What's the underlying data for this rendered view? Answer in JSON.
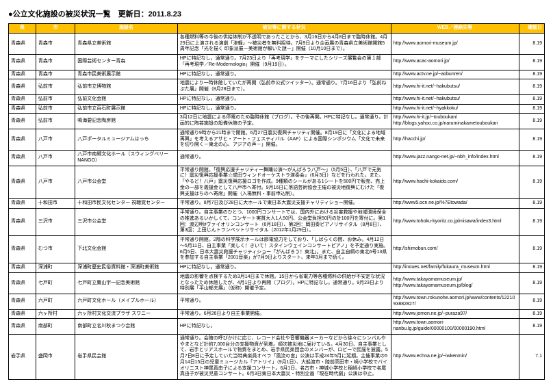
{
  "doc": {
    "title": "●公立文化施設の被災状況一覧　更新日：2011.8.23"
  },
  "columns": {
    "pref": "県",
    "city": "市",
    "facility": "施設名",
    "status": "被災等に関する状況",
    "url": "WEB／連絡先等",
    "date": "確認日"
  },
  "rows": [
    {
      "pref": "青森県",
      "city": "青森市",
      "facility": "青森県立美術館",
      "status": "各種燃料等の今後の供給体制が不透明であったことから、3月16日から4月8日まで臨時休館。4月29日に上演される演劇「津軽」～被災者を無料招待。7月9日より企画展の青森県立美術館開館5周年記念「光を描く 印象派展－美術館が解いた謎－」開催（10月10日まで）。",
      "url": "http://www.aomori-museum.jp/",
      "date": "8.19"
    },
    {
      "pref": "青森県",
      "city": "青森市",
      "facility": "国際芸術センター青森",
      "status": "HPに特記なし。通常通り。7月23日より「再考現学」をテーマにしたシリーズ展覧会の第１部「再考現学／Re-Modernologio」開催（9月19日）。",
      "url": "http://www.acac-aomori.jp/",
      "date": "8.19"
    },
    {
      "pref": "青森県",
      "city": "青森市",
      "facility": "青森市民美術展示館",
      "status": "HPに特記なし。通常通り。",
      "url": "http://www.actv.ne.jp/~aobunren/",
      "date": "8.19"
    },
    {
      "pref": "青森県",
      "city": "弘前市",
      "facility": "弘前市立博物館",
      "status": "地震により一時休館していたが再開（弘前市公式ツイッター）。通常通り。7月16日より「弘前ねぷた展」開催（8月28日まで）。",
      "url": "http://www.hi-it.net/~hakubutsu/",
      "date": "8.19"
    },
    {
      "pref": "青森県",
      "city": "弘前市",
      "facility": "弘前文化会館",
      "status": "HPに特記なし。通常通り。",
      "url": "http://www.hi-it.net/~hakubutsu/",
      "date": "8.19"
    },
    {
      "pref": "青森県",
      "city": "弘前市",
      "facility": "弘前市立百石町展示館",
      "status": "HPに特記なし。通常通り。",
      "url": "http://www.hi-it.net/~hyakkoku/",
      "date": "8.19"
    },
    {
      "pref": "青森県",
      "city": "弘前市",
      "facility": "鳴海要記念陶房館",
      "status": "3月12日に地震による停電のため臨時休館（ブログ）。その後再開。HPに特記なし。通常通り。計画的に陶芸施設の設備休館の予定。",
      "url": "http://www.hi-it.jp/~touboukan/ http://blogs.yahoo.co.jp/naruminakametouboukan",
      "date": "8.19"
    },
    {
      "pref": "青森県",
      "city": "八戸市",
      "facility": "八戸ポータルミュージアムはっち",
      "status": "通常通り9時から21時まで開館。6月27日震災復興チャリティ開催。8月19日に「文化による地域再興」を考えるアサヒ・アート・フェスティバル（AAF）による国際シンポジウム「文化で未来を切り開く－東北の心、アジアの声－」開催。",
      "url": "http://hacchi.jp/",
      "date": "8.19"
    },
    {
      "pref": "青森県",
      "city": "八戸市",
      "facility": "八戸市南郷文化ホール（スウィングベリーNANGO）",
      "status": "通常通り。",
      "url": "http://www.jazz.nango-net.jp/~nbh_info/index.html",
      "date": "8.19"
    },
    {
      "pref": "青森県",
      "city": "八戸市",
      "facility": "八戸市公会堂",
      "status": "平常通り開館。「復興応援チャリティー舞踊公演～がんばろう八戸～」（5月5日）、「八戸で元気に！震災復興応援事業☆成田ウィンドオーケストラ演奏会」（6月3日）などを行われた。また、「やるど！八戸」震災復興応援ロゴを作成。9種類のシールがある1シートを500円で販売、売上金の一部を義援金として八戸市へ寄付。9月16日に落語芸術協会主催の被災地復興にむけた「復興支援はちのへ寄席」開催（入場無料・事前申込制）。",
      "url": "http://www.hachi-kokaido.com/",
      "date": "8.19"
    },
    {
      "pref": "青森県",
      "city": "十和田市",
      "facility": "十和田市民文化センター 視聴覚センター",
      "status": "平常通り。8月7日及び28日に大ホールで東日本大震災支援チャリティショー開催。",
      "url": "http://www5.ocn.ne.jp/%7Etowada/",
      "date": "8.19"
    },
    {
      "pref": "青森県",
      "city": "三沢市",
      "facility": "三沢市公会堂",
      "status": "平常通り。自主事業のひとつ、1000円コンサートでは、国内外における災害救援や地域環境保全の推進あるいかしくて、コンサート実質大人1人50円、公会堂負担50円の計100円を寄付に。第1回：渡辺明♯ヴァイオリンコンサート（6月18日）、第2回：岡田奏ピアノリサイタル（8月8日）、第3回：上田じんトランペットリサイタル（2012年1月29日）。",
      "url": "http://www.tohoku-kyoritz.co.jp/misawa/index3.html",
      "date": "8.19"
    },
    {
      "pref": "青森県",
      "city": "むつ市",
      "facility": "下北文化会館",
      "status": "平常通り開館。2階の科学展示ホールは節電協力をしており、「しばらくの間、お休み。4月12日～5月11日、自主事業「楽しく！きいて！スタインウェインコンサートピアノ」を予定通り実施。6月5日、日本大震災救援チャリティショー「がんばろう！東北」。また、自主自綱の東北6号13県を参加する自主事業「2001音楽」が7月9日よりスタート、来年3月まで続く。",
      "url": "http://shimobun.com/",
      "date": "8.19"
    },
    {
      "pref": "青森県",
      "city": "深浦町",
      "facility": "深浦町歴史民俗資料館・深浦町美術館",
      "status": "HPに特記なし。通常通り。",
      "url": "http://inoues.net/family/fukaura_museum.html",
      "date": "8.19"
    },
    {
      "pref": "青森県",
      "city": "七戸町",
      "facility": "七戸町立鷹山宇一記念美術館",
      "status": "地震の影響を点検するため3月14日まで休館。15日から省電力等各種燃料の供給が不安定な状況となったため休館したが、4月1日より再開（ブログ）。HPに特記なし。通常通り。9月23日より特別展「平山郁夫展」（仮称）開催予定。",
      "url": "http://www.takayamamuseum.jp/ http://www.takayamamuseum.jp/blog/",
      "date": "8.19"
    },
    {
      "pref": "青森県",
      "city": "六戸町",
      "facility": "六戸町文化ホール（メイプルホール）",
      "status": "平常通り。",
      "url": "http://www.town.rokunohe.aomori.jp/www/contents/1221093882827/",
      "date": "8.19"
    },
    {
      "pref": "青森県",
      "city": "六ヶ所村",
      "facility": "六ヶ所村文化交流プラザ スワニー",
      "status": "平常通り。6月26日より自主事業開催。",
      "url": "http://www.jomon.ne.jp/~puraza97/",
      "date": "8.19"
    },
    {
      "pref": "青森県",
      "city": "南部町",
      "facility": "南部町立名川秋まつり会館",
      "status": "HPに特記なし。",
      "url": "http://www.town.aomori-nanbu.lg.jp/guide/00000100/00000190.html",
      "date": "8.19"
    },
    {
      "pref": "岩手県",
      "city": "盛岡市",
      "facility": "岩手県民会館",
      "status": "通常通り。会館の呼びかけに応じ、レコード会社や音響機器メーカーなどから徐々にシンバルややまとなど計約7,000台分の支援物資が到着。順次被災地に届けている。4月30日、自主事業として、岩手とリアスホールで物資をまとめ、岩手県民楽団会のメンバーが、ロビーで民謡を披露。5月7日8日に予定していた当特典楽員オペラ「風流の宮」公演は平成24年5月に延期。主催事業の5月14日15日の児童ミュージカル「アトリイ」（9月1日）、大船渡市・陸前高田市・崎小学校でバイオリニスト神尾真由子による支援コンサート。6月1日、名古市・神城小学校と稲崎小学校で名尾真由子が被災児童コンサート。6月3日東日本大震災・特別企画「現在時代劇」公演は中止。",
      "url": "http://www.echna.ne.jp/~iwkenmin/",
      "date": "7.1"
    }
  ]
}
